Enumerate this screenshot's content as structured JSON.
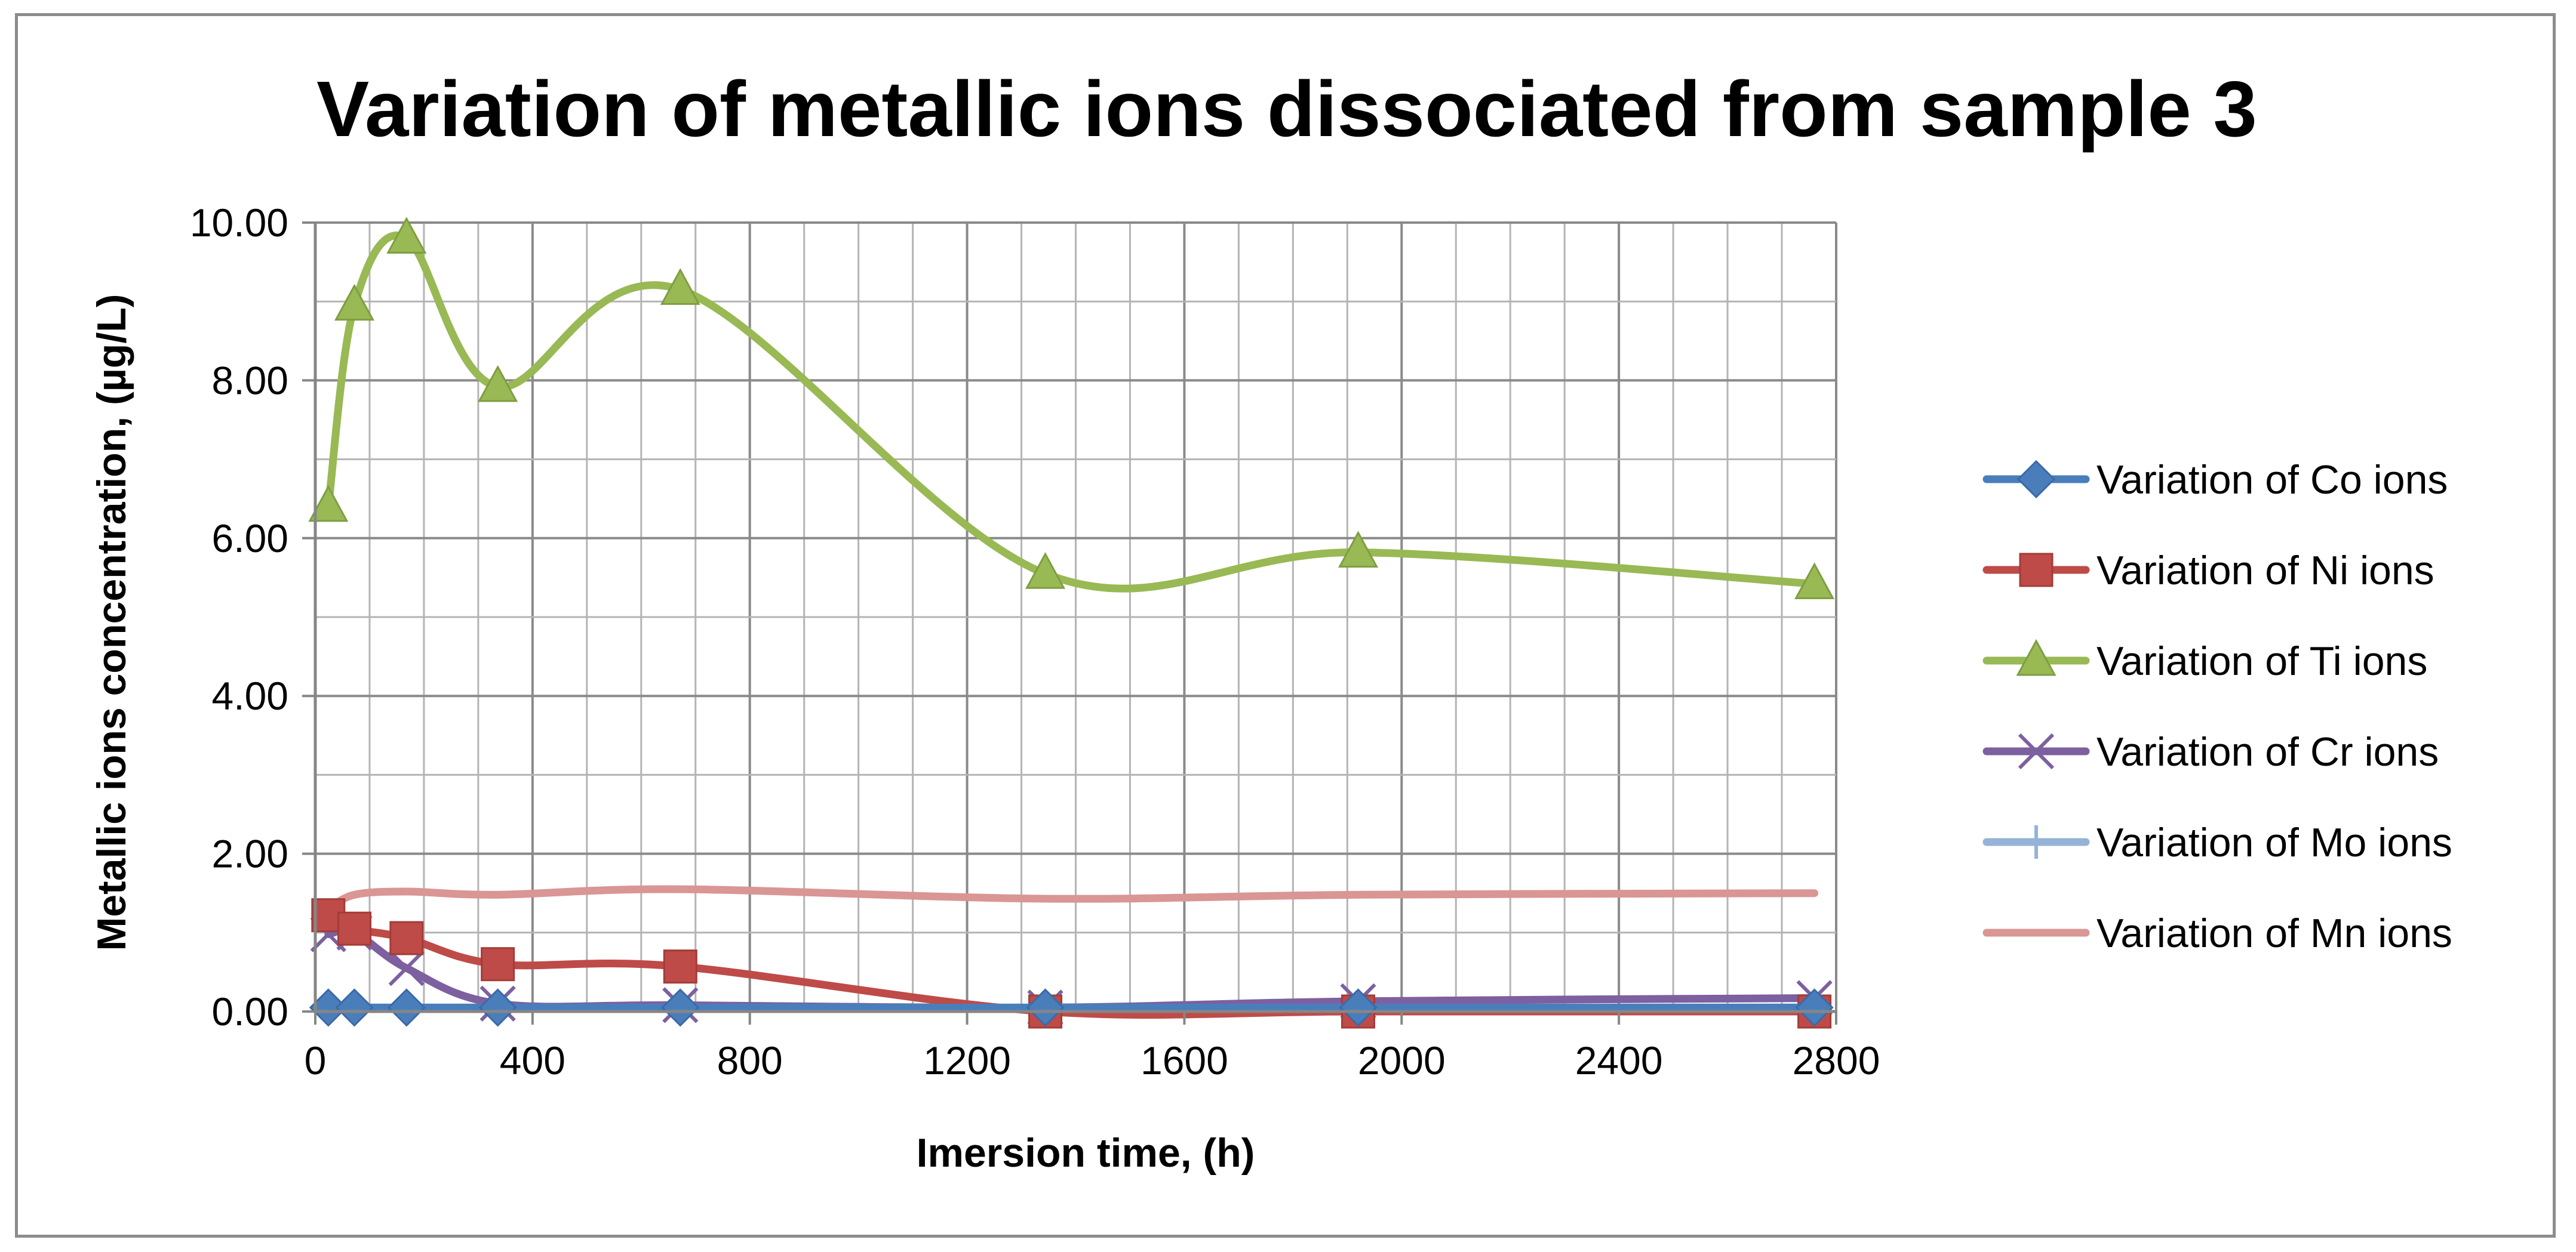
{
  "chart_data": {
    "type": "line",
    "title": "Variation of metallic ions dissociated from sample 3",
    "xlabel": "Imersion time, (h)",
    "ylabel": "Metallic ions concentration, (µg/L)",
    "xlim": [
      0,
      2800
    ],
    "ylim": [
      0,
      10
    ],
    "x_major_ticks": [
      0,
      400,
      800,
      1200,
      1600,
      2000,
      2400,
      2800
    ],
    "x_tick_labels": [
      "0",
      "400",
      "800",
      "1200",
      "1600",
      "2000",
      "2400",
      "2800"
    ],
    "y_major_ticks": [
      0,
      2,
      4,
      6,
      8,
      10
    ],
    "y_tick_labels": [
      "0.00",
      "2.00",
      "4.00",
      "6.00",
      "8.00",
      "10.00"
    ],
    "grid": true,
    "legend_position": "right",
    "series": [
      {
        "name": "Variation of Co ions",
        "color": "#4a7ebb",
        "marker": "diamond",
        "x": [
          24,
          72,
          168,
          336,
          672,
          1344,
          1920,
          2760
        ],
        "y": [
          0.05,
          0.05,
          0.05,
          0.05,
          0.05,
          0.05,
          0.05,
          0.05
        ]
      },
      {
        "name": "Variation of Ni ions",
        "color": "#be4b48",
        "marker": "square",
        "x": [
          24,
          72,
          168,
          336,
          672,
          1344,
          1920,
          2760
        ],
        "y": [
          1.22,
          1.05,
          0.93,
          0.6,
          0.57,
          0.0,
          0.0,
          0.0
        ]
      },
      {
        "name": "Variation of Ti ions",
        "color": "#98b954",
        "marker": "triangle",
        "x": [
          24,
          72,
          168,
          336,
          672,
          1344,
          1920,
          2760
        ],
        "y": [
          6.4,
          8.95,
          9.8,
          7.92,
          9.15,
          5.55,
          5.82,
          5.42
        ]
      },
      {
        "name": "Variation of Cr ions",
        "color": "#7d60a0",
        "marker": "x",
        "x": [
          24,
          72,
          168,
          336,
          672,
          1344,
          1920,
          2760
        ],
        "y": [
          0.98,
          1.0,
          0.55,
          0.1,
          0.08,
          0.05,
          0.13,
          0.17
        ]
      },
      {
        "name": "Variation of Mo ions",
        "color": "#95b3d7",
        "marker": "plus",
        "x": [
          24,
          72,
          168,
          336,
          672,
          1344,
          1920,
          2760
        ],
        "y": [
          0.05,
          0.05,
          0.05,
          0.05,
          0.05,
          0.05,
          0.05,
          0.05
        ]
      },
      {
        "name": "Variation of Mn ions",
        "color": "#d99694",
        "marker": "none",
        "x": [
          24,
          72,
          168,
          336,
          672,
          1344,
          1920,
          2760
        ],
        "y": [
          1.3,
          1.48,
          1.52,
          1.48,
          1.55,
          1.43,
          1.48,
          1.5
        ]
      }
    ]
  }
}
